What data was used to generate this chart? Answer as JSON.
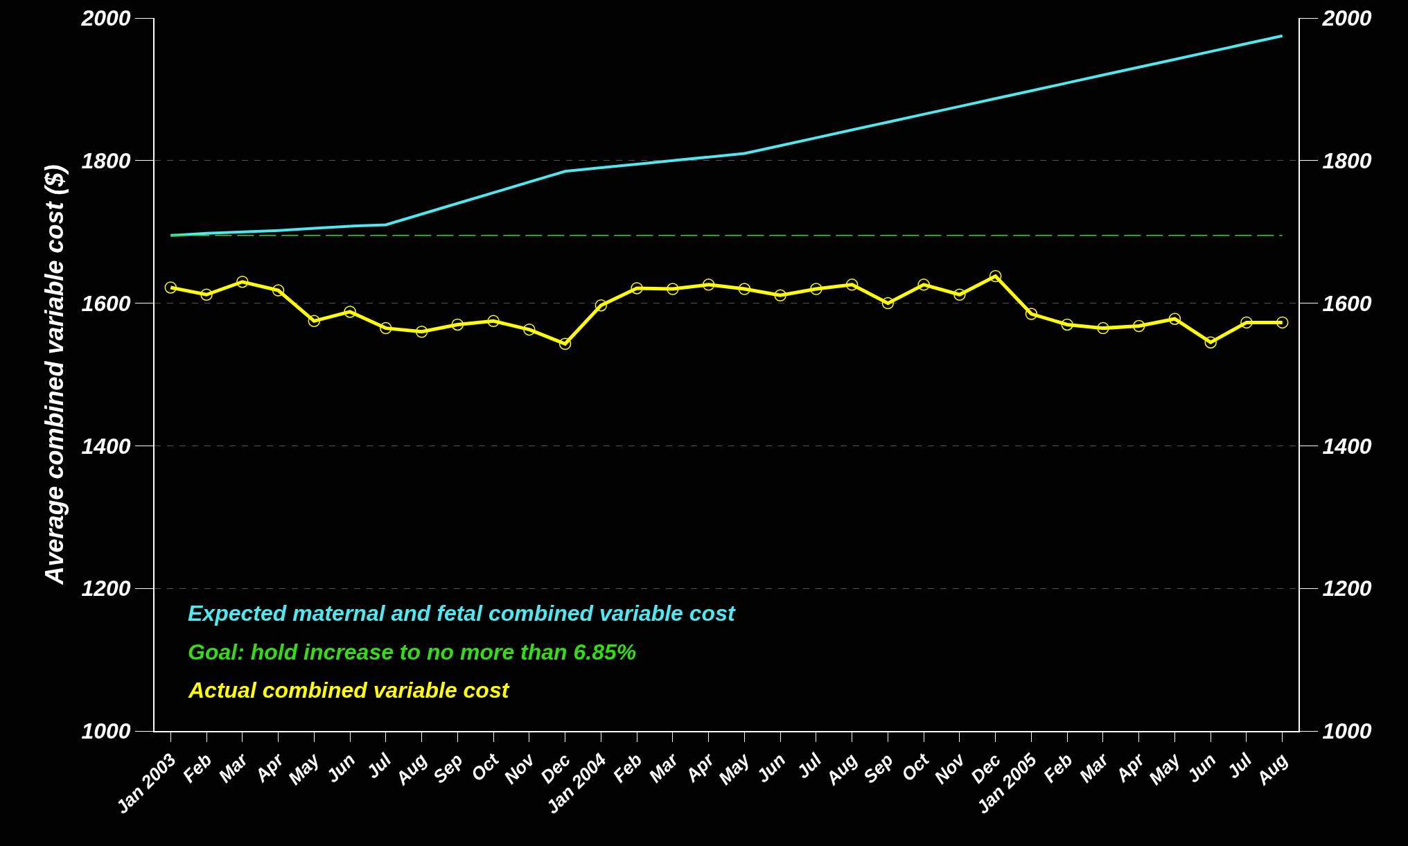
{
  "chart_data": {
    "type": "line",
    "ylabel": "Average combined variable cost ($)",
    "categories": [
      "Jan 2003",
      "Feb",
      "Mar",
      "Apr",
      "May",
      "Jun",
      "Jul",
      "Aug",
      "Sep",
      "Oct",
      "Nov",
      "Dec",
      "Jan 2004",
      "Feb",
      "Mar",
      "Apr",
      "May",
      "Jun",
      "Jul",
      "Aug",
      "Sep",
      "Oct",
      "Nov",
      "Dec",
      "Jan 2005",
      "Feb",
      "Mar",
      "Apr",
      "May",
      "Jun",
      "Jul",
      "Aug"
    ],
    "series": [
      {
        "name": "Expected maternal and fetal combined variable cost",
        "color": "#4de8f0",
        "marker": "none",
        "line_style": "solid",
        "values": [
          1695,
          1698,
          1700,
          1702,
          1705,
          1708,
          1710,
          1725,
          1740,
          1755,
          1770,
          1785,
          1790,
          1795,
          1800,
          1805,
          1810,
          1821,
          1832,
          1843,
          1854,
          1865,
          1876,
          1887,
          1898,
          1909,
          1920,
          1931,
          1942,
          1953,
          1964,
          1975
        ]
      },
      {
        "name": "Goal: hold increase to no more than 6.85%",
        "color": "#33dd11",
        "marker": "none",
        "line_style": "dashed",
        "values": [
          1695,
          1695,
          1695,
          1695,
          1695,
          1695,
          1695,
          1695,
          1695,
          1695,
          1695,
          1695,
          1695,
          1695,
          1695,
          1695,
          1695,
          1695,
          1695,
          1695,
          1695,
          1695,
          1695,
          1695,
          1695,
          1695,
          1695,
          1695,
          1695,
          1695,
          1695,
          1695
        ]
      },
      {
        "name": "Actual combined variable cost",
        "color": "#ffff00",
        "marker": "circle",
        "line_style": "solid",
        "values": [
          1622,
          1612,
          1630,
          1618,
          1575,
          1588,
          1565,
          1560,
          1570,
          1575,
          1563,
          1543,
          1597,
          1621,
          1620,
          1626,
          1620,
          1611,
          1620,
          1626,
          1600,
          1626,
          1612,
          1638,
          1585,
          1570,
          1565,
          1568,
          1578,
          1545,
          1573,
          1573
        ]
      }
    ],
    "ylim": [
      1000,
      2000
    ],
    "yticks": [
      1000,
      1200,
      1400,
      1600,
      1800,
      2000
    ],
    "y2lim": [
      1000,
      2000
    ],
    "y2ticks": [
      1000,
      1200,
      1400,
      1600,
      1800,
      2000
    ],
    "grid": "y",
    "legend": "bottom left"
  }
}
